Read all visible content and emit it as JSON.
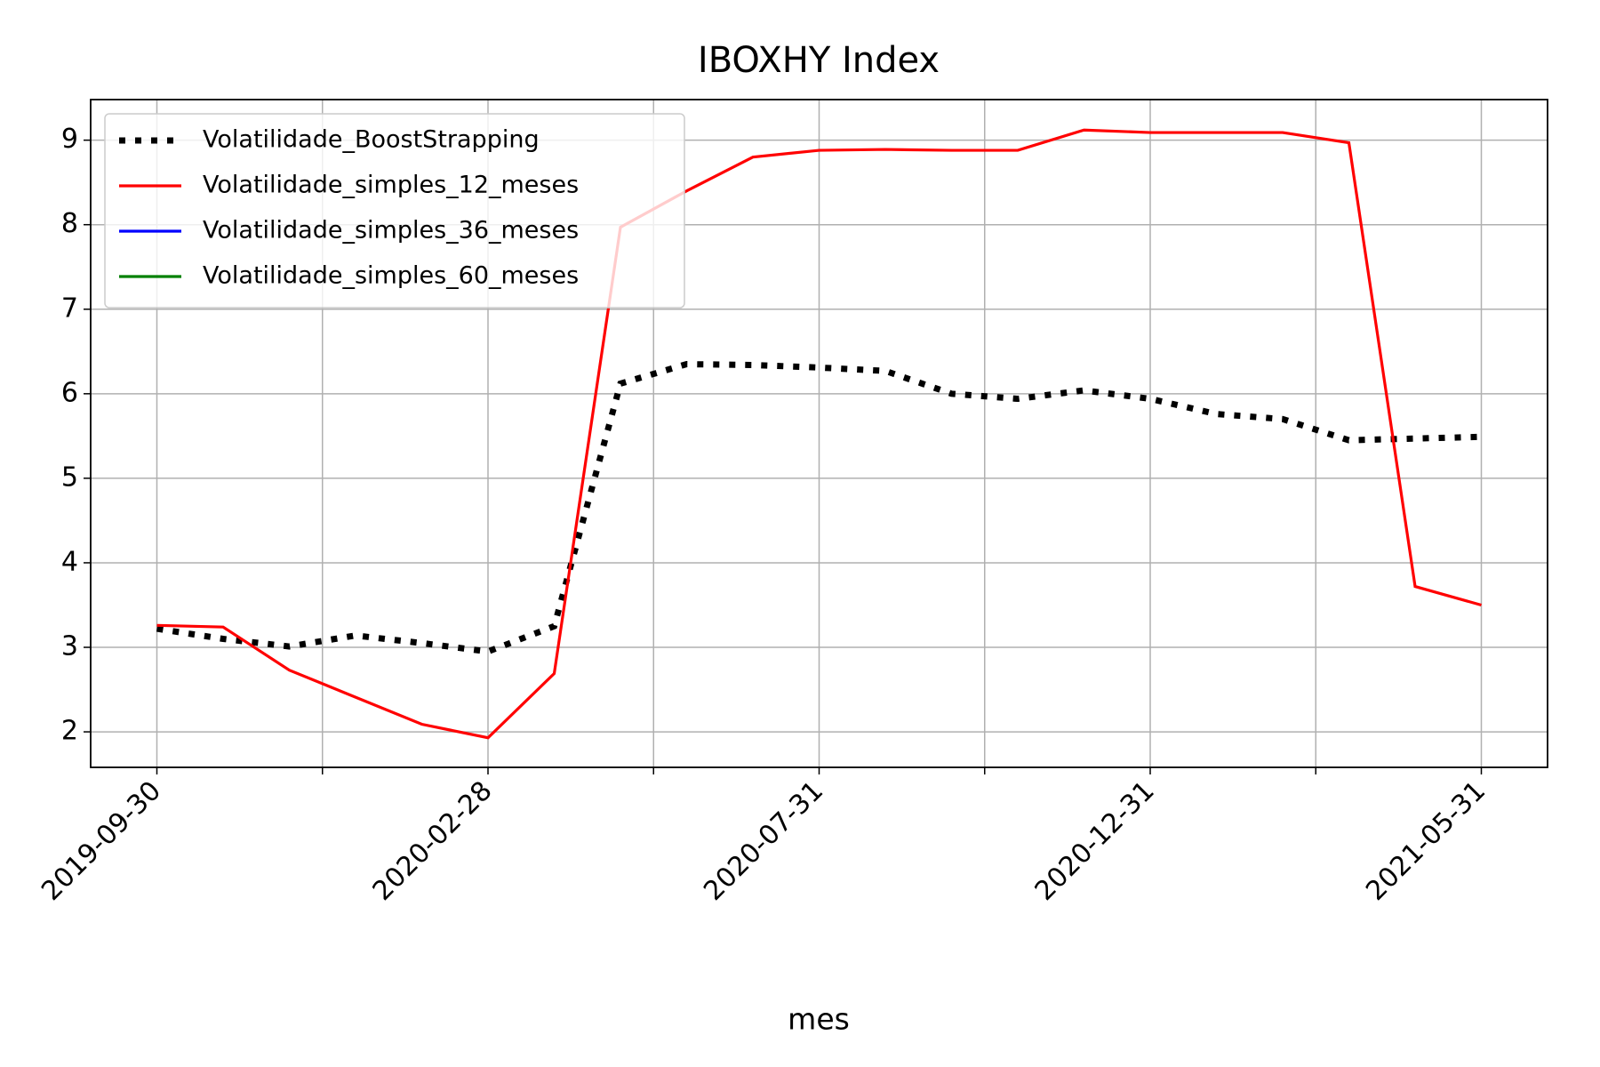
{
  "chart_data": {
    "type": "line",
    "title": "IBOXHY Index",
    "x_label": "mes",
    "categories": [
      "2019-09-30",
      null,
      null,
      null,
      null,
      "2020-02-28",
      null,
      null,
      null,
      null,
      "2020-07-31",
      null,
      null,
      null,
      null,
      "2020-12-31",
      null,
      null,
      null,
      null,
      "2021-05-31"
    ],
    "series": [
      {
        "name": "Volatilidade_BoostStrapping",
        "color": "#000000",
        "style": "dotted",
        "values": [
          3.22,
          3.1,
          3.01,
          3.14,
          3.05,
          2.95,
          3.25,
          6.12,
          6.35,
          6.34,
          6.31,
          6.27,
          6.0,
          5.94,
          6.04,
          5.94,
          5.76,
          5.7,
          5.45,
          5.47,
          5.49
        ]
      },
      {
        "name": "Volatilidade_simples_12_meses",
        "color": "#ff0000",
        "style": "solid",
        "values": [
          3.26,
          3.24,
          2.73,
          2.41,
          2.09,
          1.93,
          2.69,
          7.97,
          8.4,
          8.8,
          8.88,
          8.89,
          8.88,
          8.88,
          9.12,
          9.09,
          9.09,
          9.09,
          8.97,
          3.72,
          3.5
        ]
      },
      {
        "name": "Volatilidade_simples_36_meses",
        "color": "#0000ff",
        "style": "solid",
        "values": [
          null,
          null,
          null,
          null,
          null,
          null,
          null,
          null,
          null,
          null,
          null,
          null,
          null,
          null,
          null,
          null,
          null,
          null,
          null,
          null,
          null
        ]
      },
      {
        "name": "Volatilidade_simples_60_meses",
        "color": "#008000",
        "style": "solid",
        "values": [
          null,
          null,
          null,
          null,
          null,
          null,
          null,
          null,
          null,
          null,
          null,
          null,
          null,
          null,
          null,
          null,
          null,
          null,
          null,
          null,
          null
        ]
      }
    ],
    "xlim": [
      -1,
      21
    ],
    "xticks": [
      0,
      2.5,
      5,
      7.5,
      10,
      12.5,
      15,
      17.5,
      20
    ],
    "ylim": [
      1.58,
      9.48
    ],
    "yticks": [
      2,
      3,
      4,
      5,
      6,
      7,
      8,
      9
    ],
    "grid": true,
    "legend": "upper left"
  }
}
